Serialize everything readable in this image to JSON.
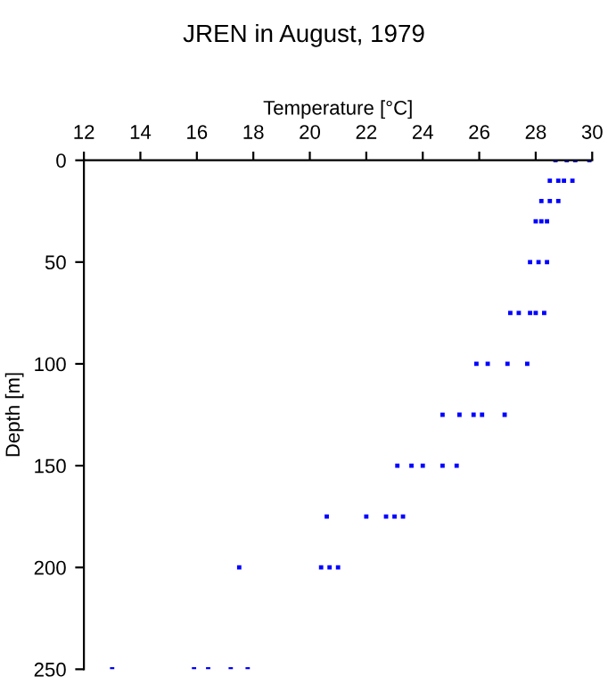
{
  "chart_data": {
    "type": "scatter",
    "title": "JREN in August, 1979",
    "xlabel": "Temperature [°C]",
    "ylabel": "Depth [m]",
    "x": [
      28.7,
      29.1,
      29.4,
      29.9,
      28.5,
      28.8,
      29.0,
      29.3,
      28.2,
      28.5,
      28.8,
      28.0,
      28.2,
      28.4,
      27.8,
      28.1,
      28.4,
      27.1,
      27.4,
      27.8,
      28.0,
      28.3,
      25.9,
      26.3,
      27.0,
      27.7,
      24.7,
      25.3,
      25.8,
      26.1,
      26.9,
      23.1,
      23.6,
      24.0,
      24.7,
      25.2,
      20.6,
      22.0,
      22.7,
      23.0,
      23.3,
      17.5,
      20.4,
      20.7,
      21.0,
      13.0,
      15.9,
      16.4,
      17.2,
      17.8
    ],
    "series": [
      {
        "color": "#0000ff",
        "values": [
          0,
          0,
          0,
          0,
          10,
          10,
          10,
          10,
          20,
          20,
          20,
          30,
          30,
          30,
          50,
          50,
          50,
          75,
          75,
          75,
          75,
          75,
          100,
          100,
          100,
          100,
          125,
          125,
          125,
          125,
          125,
          150,
          150,
          150,
          150,
          150,
          175,
          175,
          175,
          175,
          175,
          200,
          200,
          200,
          200,
          250,
          250,
          250,
          250,
          250
        ]
      }
    ],
    "xlim": [
      12,
      30
    ],
    "xticks": [
      12,
      14,
      16,
      18,
      20,
      22,
      24,
      26,
      28,
      30
    ],
    "ylim": [
      250,
      0
    ],
    "yticks": [
      0,
      50,
      100,
      150,
      200,
      250
    ],
    "marker": "square",
    "grid": false,
    "legend": false
  }
}
